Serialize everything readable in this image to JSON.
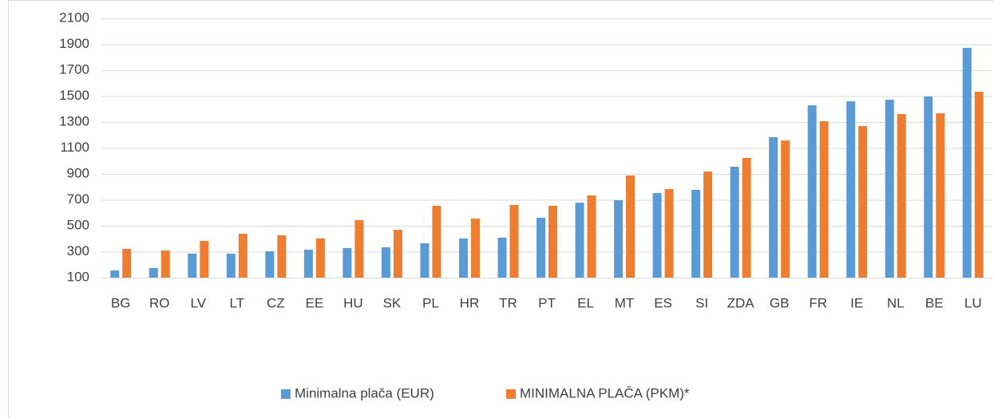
{
  "chart_data": {
    "type": "bar",
    "categories": [
      "BG",
      "RO",
      "LV",
      "LT",
      "CZ",
      "EE",
      "HU",
      "SK",
      "PL",
      "HR",
      "TR",
      "PT",
      "EL",
      "MT",
      "ES",
      "SI",
      "ZDA",
      "GB",
      "FR",
      "IE",
      "NL",
      "BE",
      "LU"
    ],
    "series": [
      {
        "name": "Minimalna plača (EUR)",
        "color": "#5b9bd5",
        "values": [
          155,
          174,
          285,
          284,
          303,
          315,
          328,
          334,
          365,
          402,
          408,
          562,
          678,
          697,
          752,
          777,
          955,
          1183,
          1429,
          1460,
          1472,
          1497,
          1872
        ]
      },
      {
        "name": "MINIMALNA PLAČA (PKM)*",
        "color": "#ed7d31",
        "values": [
          322,
          309,
          383,
          438,
          426,
          402,
          543,
          469,
          654,
          555,
          660,
          654,
          734,
          888,
          783,
          918,
          1023,
          1158,
          1306,
          1269,
          1362,
          1368,
          1534
        ]
      }
    ],
    "ylim": [
      100,
      2100
    ],
    "yticks": [
      100,
      300,
      500,
      700,
      900,
      1100,
      1300,
      1500,
      1700,
      1900,
      2100
    ],
    "grid": true,
    "legend": "bottom"
  }
}
